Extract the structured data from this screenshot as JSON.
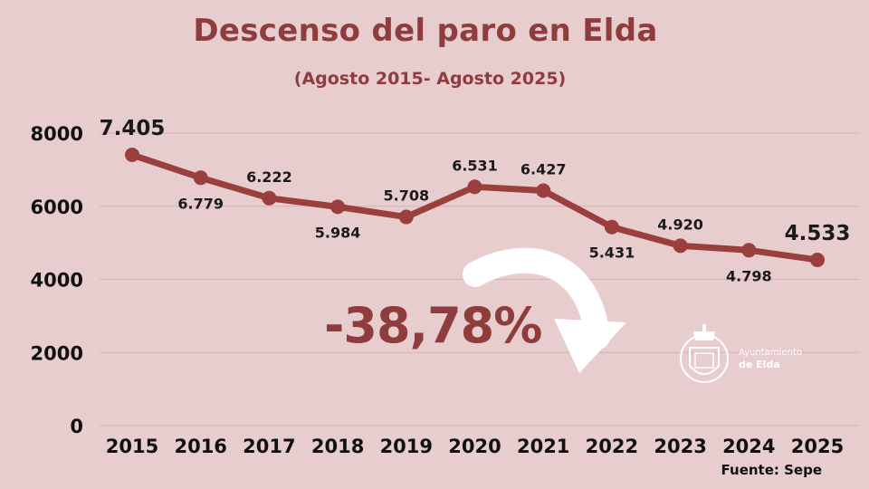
{
  "header": {
    "title": "Descenso del paro en Elda",
    "subtitle": "(Agosto 2015- Agosto 2025)"
  },
  "annotation": {
    "change": "-38,78%"
  },
  "source": "Fuente: Sepe",
  "logo": {
    "line1": "Ayuntamiento",
    "line2": "de Elda",
    "icon": "elda-coat-of-arms-icon"
  },
  "colors": {
    "background": "#e8cdcf",
    "accent": "#8e3c3c",
    "line": "#9a3e3e",
    "gridline": "#d4b3b6"
  },
  "chart_data": {
    "type": "line",
    "title": "Descenso del paro en Elda",
    "subtitle": "(Agosto 2015- Agosto 2025)",
    "xlabel": "",
    "ylabel": "",
    "ylim": [
      0,
      8000
    ],
    "yticks": [
      0,
      2000,
      4000,
      6000,
      8000
    ],
    "grid": true,
    "categories": [
      "2015",
      "2016",
      "2017",
      "2018",
      "2019",
      "2020",
      "2021",
      "2022",
      "2023",
      "2024",
      "2025"
    ],
    "series": [
      {
        "values": [
          7405,
          6779,
          6222,
          5984,
          5708,
          6531,
          6427,
          5431,
          4920,
          4798,
          4533
        ],
        "labels": [
          "7.405",
          "6.779",
          "6.222",
          "5.984",
          "5.708",
          "6.531",
          "6.427",
          "5.431",
          "4.920",
          "4.798",
          "4.533"
        ]
      }
    ]
  }
}
